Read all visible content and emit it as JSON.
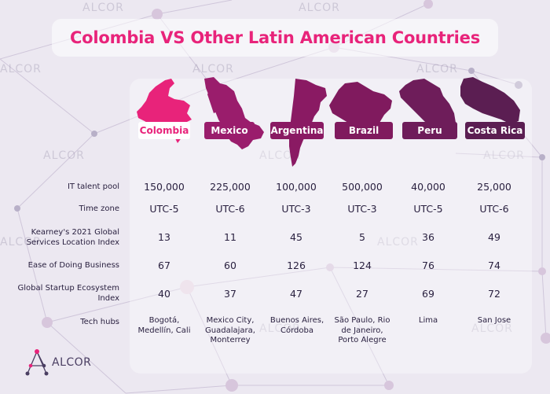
{
  "title": "Colombia VS Other Latin American Countries",
  "watermark": "ALCOR",
  "logo_text": "ALCOR",
  "colors": {
    "accent": "#e8237a",
    "background": "#ece8f1"
  },
  "countries": [
    {
      "name": "Colombia",
      "color": "#e8237a"
    },
    {
      "name": "Mexico",
      "color": "#9a1d6c"
    },
    {
      "name": "Argentina",
      "color": "#8a1a63"
    },
    {
      "name": "Brazil",
      "color": "#801a5e"
    },
    {
      "name": "Peru",
      "color": "#6e1d5a"
    },
    {
      "name": "Costa Rica",
      "color": "#5b1e52"
    }
  ],
  "rows": [
    {
      "label": "IT talent pool",
      "values": [
        "150,000",
        "225,000",
        "100,000",
        "500,000",
        "40,000",
        "25,000"
      ]
    },
    {
      "label": "Time zone",
      "values": [
        "UTC-5",
        "UTC-6",
        "UTC-3",
        "UTC-3",
        "UTC-5",
        "UTC-6"
      ]
    },
    {
      "label": "Kearney's 2021 Global Services Location Index",
      "values": [
        "13",
        "11",
        "45",
        "5",
        "36",
        "49"
      ]
    },
    {
      "label": "Ease of Doing Business",
      "values": [
        "67",
        "60",
        "126",
        "124",
        "76",
        "74"
      ]
    },
    {
      "label": "Global Startup Ecosystem Index",
      "values": [
        "40",
        "37",
        "47",
        "27",
        "69",
        "72"
      ]
    },
    {
      "label": "Tech hubs",
      "values": [
        "Bogotá, Medellín, Cali",
        "Mexico City, Guadalajara, Monterrey",
        "Buenos Aires, Córdoba",
        "São Paulo, Rio de Janeiro, Porto Alegre",
        "Lima",
        "San Jose"
      ]
    }
  ]
}
